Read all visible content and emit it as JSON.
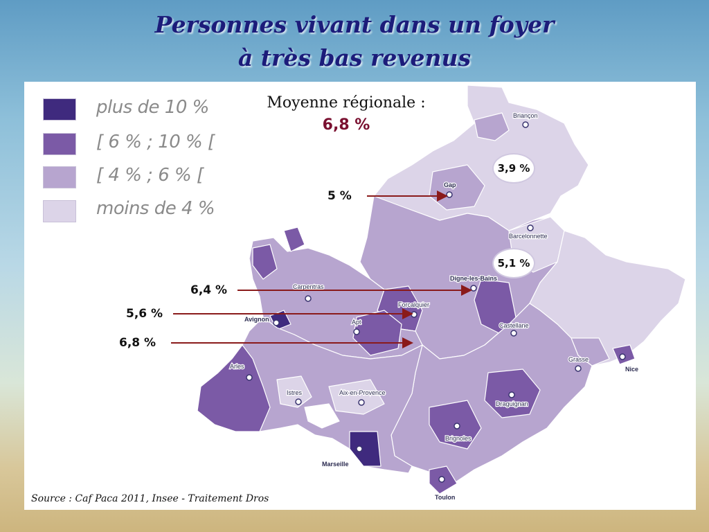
{
  "title": {
    "line1": "Personnes vivant dans un foyer",
    "line2": "à très bas revenus"
  },
  "legend": [
    {
      "label": "plus de 10 %",
      "color": "#3f2a7e"
    },
    {
      "label": "[ 6 % ; 10 % [",
      "color": "#7b5aa6"
    },
    {
      "label": "[ 4 % ; 6 % [",
      "color": "#b7a5cf"
    },
    {
      "label": "moins de 4 %",
      "color": "#dcd4e8"
    }
  ],
  "average": {
    "label": "Moyenne régionale :",
    "value": "6,8 %"
  },
  "callouts": {
    "gap": "5 %",
    "digne": "6,4 %",
    "forcalquier": "5,6 %",
    "apt": "6,8 %",
    "briancon": "3,9 %",
    "barcelonnette": "5,1 %"
  },
  "cities": {
    "briancon": "Briançon",
    "gap": "Gap",
    "barcelonnette": "Barcelonnette",
    "digne": "Digne-les-Bains",
    "carpentras": "Carpentras",
    "forcalquier": "Forcalquier",
    "avignon": "Avignon",
    "apt": "Apt",
    "castellane": "Castellane",
    "grasse": "Grasse",
    "nice": "Nice",
    "arles": "Arles",
    "istres": "Istres",
    "aix": "Aix-en-Provence",
    "draguignan": "Draguignan",
    "brignoles": "Brignoles",
    "marseille": "Marseille",
    "toulon": "Toulon"
  },
  "source": "Source : Caf Paca 2011, Insee - Traitement Dros",
  "colors": {
    "arrow": "#8a1a1a",
    "title": "#1c1c7a"
  }
}
